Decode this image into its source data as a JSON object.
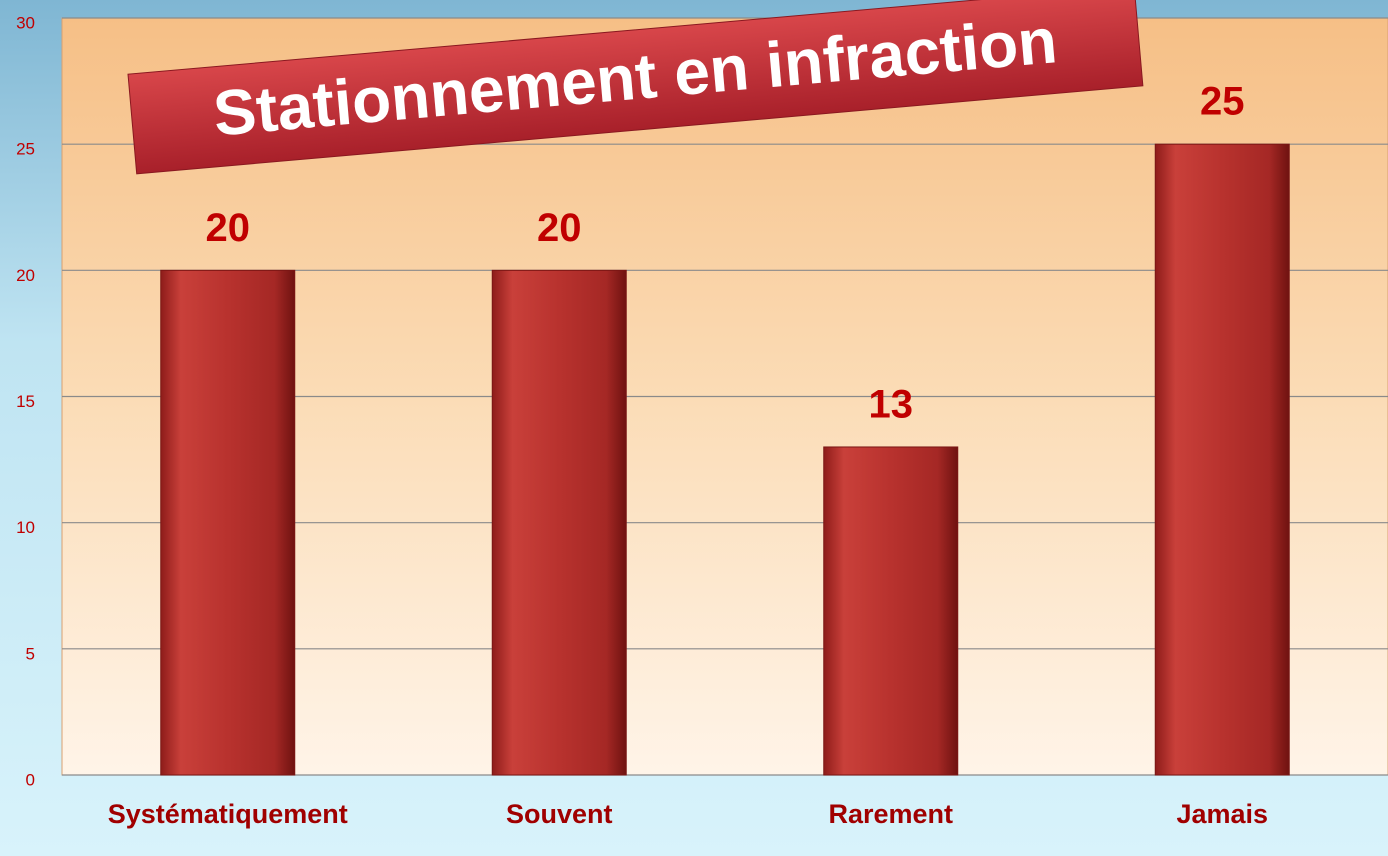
{
  "chart_data": {
    "type": "bar",
    "title": "Stationnement en infraction",
    "categories": [
      "Systématiquement",
      "Souvent",
      "Rarement",
      "Jamais"
    ],
    "values": [
      20,
      20,
      13,
      25
    ],
    "color": "#c0302c",
    "ylim": [
      0,
      30
    ],
    "yticks": [
      0,
      5,
      10,
      15,
      20,
      25,
      30
    ],
    "grid": true
  }
}
